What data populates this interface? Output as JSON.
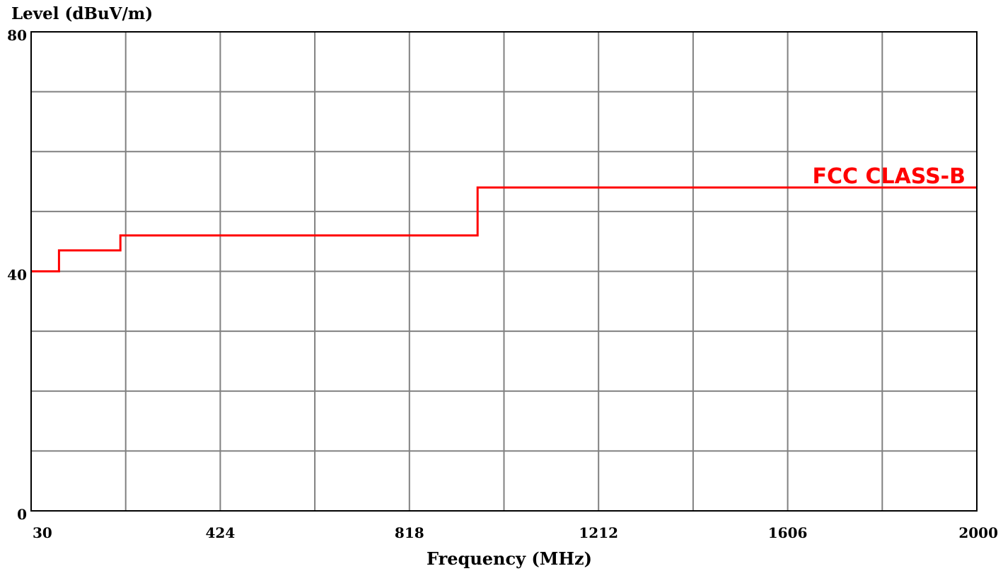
{
  "colors": {
    "grid": "#808080",
    "frame": "#000000",
    "limit_line": "#ff0000",
    "background": "#ffffff"
  },
  "chart_data": {
    "type": "line",
    "title": "",
    "ylabel": "Level (dBuV/m)",
    "xlabel": "Frequency (MHz)",
    "xlim": [
      30,
      2000
    ],
    "ylim": [
      0,
      80
    ],
    "grid": true,
    "x_gridlines": 10,
    "y_gridlines": 8,
    "x_tick_labels": [
      "30",
      "424",
      "818",
      "1212",
      "1606",
      "2000"
    ],
    "x_tick_values": [
      30,
      424,
      818,
      1212,
      1606,
      2000
    ],
    "y_tick_labels": [
      "0",
      "40",
      "80"
    ],
    "y_tick_values": [
      0,
      40,
      80
    ],
    "series": [
      {
        "name": "FCC CLASS-B",
        "step": true,
        "points": [
          [
            30,
            40
          ],
          [
            88,
            40
          ],
          [
            88,
            43.5
          ],
          [
            216,
            43.5
          ],
          [
            216,
            46
          ],
          [
            960,
            46
          ],
          [
            960,
            54
          ],
          [
            2000,
            54
          ]
        ]
      }
    ],
    "annotations": [
      {
        "text": "FCC CLASS-B",
        "x": 2000,
        "y": 54,
        "anchor": "end",
        "placement": "above-right"
      }
    ]
  }
}
